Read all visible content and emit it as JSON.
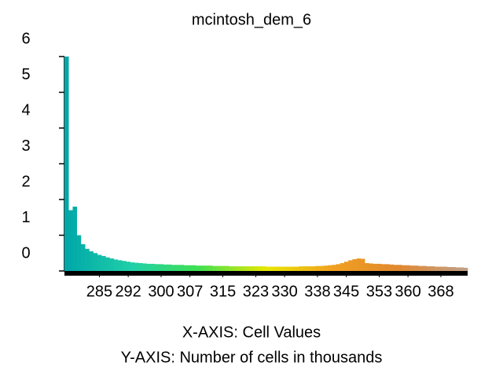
{
  "chart_data": {
    "type": "histogram",
    "title": "mcintosh_dem_6",
    "xlabel": "X-AXIS: Cell Values",
    "ylabel": "Y-AXIS: Number of cells in thousands",
    "bins": [
      276.5,
      277.5,
      278.5,
      279.5,
      280.5,
      281.5,
      282.5,
      283.5,
      284.5,
      285.5,
      286.5,
      287.5,
      288.5,
      289.5,
      290.5,
      291.5,
      292.5,
      293.5,
      294.5,
      295.5,
      296.5,
      297.5,
      298.5,
      299.5,
      300.5,
      301.5,
      302.5,
      303.5,
      304.5,
      305.5,
      306.5,
      307.5,
      308.5,
      309.5,
      310.5,
      311.5,
      312.5,
      313.5,
      314.5,
      315.5,
      316.5,
      317.5,
      318.5,
      319.5,
      320.5,
      321.5,
      322.5,
      323.5,
      324.5,
      325.5,
      326.5,
      327.5,
      328.5,
      329.5,
      330.5,
      331.5,
      332.5,
      333.5,
      334.5,
      335.5,
      336.5,
      337.5,
      338.5,
      339.5,
      340.5,
      341.5,
      342.5,
      343.5,
      344.5,
      345.5,
      346.5,
      347.5,
      348.5,
      349.5,
      350.5,
      351.5,
      352.5,
      353.5,
      354.5,
      355.5,
      356.5,
      357.5,
      358.5,
      359.5,
      360.5,
      361.5,
      362.5,
      363.5,
      364.5,
      365.5,
      366.5,
      367.5,
      368.5,
      369.5,
      370.5,
      371.5,
      372.5,
      373.5,
      374.5
    ],
    "values": [
      6,
      1.7,
      1.8,
      1.0,
      0.75,
      0.62,
      0.55,
      0.5,
      0.45,
      0.42,
      0.38,
      0.35,
      0.32,
      0.3,
      0.28,
      0.26,
      0.24,
      0.23,
      0.22,
      0.21,
      0.2,
      0.2,
      0.19,
      0.19,
      0.18,
      0.18,
      0.17,
      0.17,
      0.17,
      0.16,
      0.16,
      0.16,
      0.15,
      0.15,
      0.15,
      0.15,
      0.14,
      0.14,
      0.14,
      0.14,
      0.13,
      0.13,
      0.13,
      0.13,
      0.13,
      0.13,
      0.13,
      0.13,
      0.13,
      0.12,
      0.12,
      0.12,
      0.12,
      0.12,
      0.12,
      0.12,
      0.12,
      0.13,
      0.13,
      0.13,
      0.13,
      0.14,
      0.14,
      0.15,
      0.16,
      0.17,
      0.19,
      0.22,
      0.26,
      0.3,
      0.33,
      0.35,
      0.34,
      0.22,
      0.21,
      0.2,
      0.2,
      0.19,
      0.19,
      0.18,
      0.17,
      0.17,
      0.16,
      0.16,
      0.15,
      0.15,
      0.14,
      0.14,
      0.13,
      0.13,
      0.12,
      0.12,
      0.12,
      0.11,
      0.11,
      0.1,
      0.1,
      0.09
    ],
    "color_stops": [
      "#00a8a8",
      "#20d0a8",
      "#40e050",
      "#e8e800",
      "#f0a020",
      "#e08830",
      "#c0a088"
    ],
    "xlim": [
      276.5,
      374.5
    ],
    "xticks": [
      285,
      292,
      300,
      307,
      315,
      323,
      330,
      338,
      345,
      353,
      360,
      368
    ],
    "ylim": [
      0,
      6
    ],
    "yticks": [
      0,
      1,
      2,
      3,
      4,
      5,
      6
    ]
  }
}
